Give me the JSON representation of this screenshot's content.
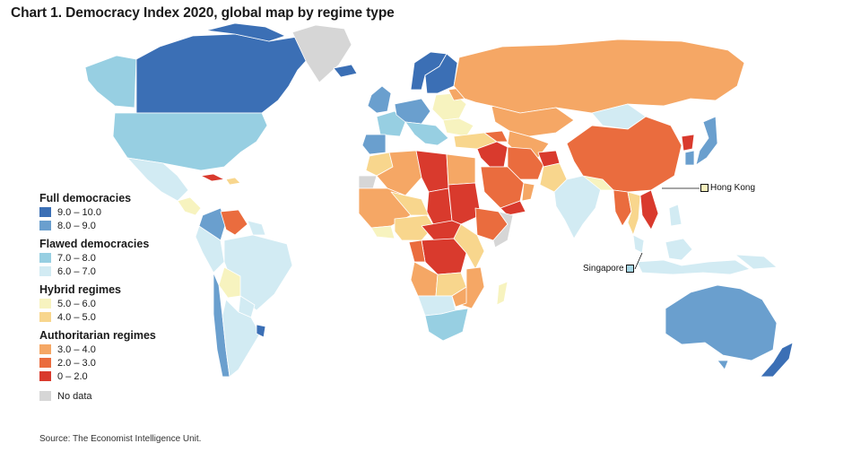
{
  "title": "Chart 1. Democracy Index 2020, global map by regime type",
  "legend": {
    "groups": [
      {
        "title": "Full democracies",
        "items": [
          {
            "label": "9.0 – 10.0",
            "color": "#3b6fb5"
          },
          {
            "label": "8.0 – 9.0",
            "color": "#6a9fce"
          }
        ]
      },
      {
        "title": "Flawed democracies",
        "items": [
          {
            "label": "7.0 – 8.0",
            "color": "#97cfe2"
          },
          {
            "label": "6.0 – 7.0",
            "color": "#d2ebf3"
          }
        ]
      },
      {
        "title": "Hybrid regimes",
        "items": [
          {
            "label": "5.0 – 6.0",
            "color": "#f7f3bf"
          },
          {
            "label": "4.0 – 5.0",
            "color": "#f8d68d"
          }
        ]
      },
      {
        "title": "Authoritarian regimes",
        "items": [
          {
            "label": "3.0 – 4.0",
            "color": "#f5a765"
          },
          {
            "label": "2.0 – 3.0",
            "color": "#ea6c3e"
          },
          {
            "label": "0 – 2.0",
            "color": "#d93a2d"
          }
        ]
      }
    ],
    "no_data": {
      "label": "No data",
      "color": "#d6d6d6"
    }
  },
  "callouts": {
    "hong_kong": "Hong Kong",
    "singapore": "Singapore"
  },
  "source": "Source: The Economist Intelligence Unit."
}
